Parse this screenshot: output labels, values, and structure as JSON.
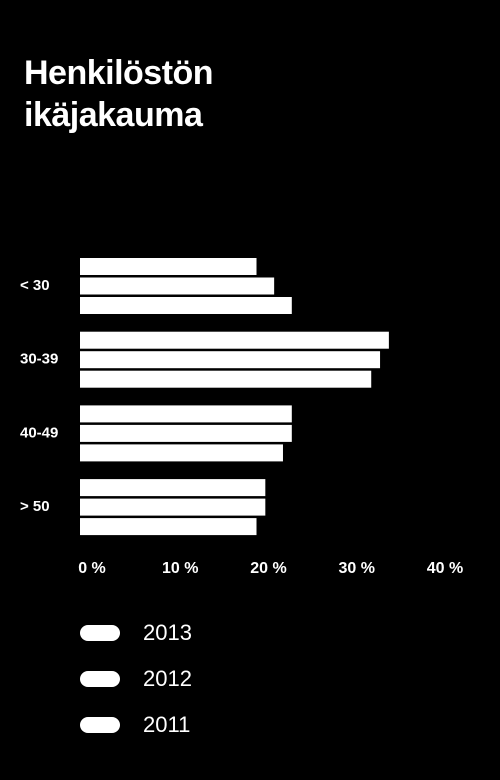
{
  "chart_data": {
    "type": "bar",
    "orientation": "horizontal",
    "title": "Henkilöstön ikäjakauma",
    "categories": [
      "< 30",
      "30-39",
      "40-49",
      "> 50"
    ],
    "series": [
      {
        "name": "2013",
        "color": "#ffffff",
        "values": [
          20,
          35,
          24,
          21
        ]
      },
      {
        "name": "2012",
        "color": "#ffffff",
        "values": [
          22,
          34,
          24,
          21
        ]
      },
      {
        "name": "2011",
        "color": "#ffffff",
        "values": [
          24,
          33,
          23,
          20
        ]
      }
    ],
    "xlim": [
      0,
      40
    ],
    "xticks": [
      {
        "value": 0,
        "label": "0 %"
      },
      {
        "value": 10,
        "label": "10 %"
      },
      {
        "value": 20,
        "label": "20 %"
      },
      {
        "value": 30,
        "label": "30 %"
      },
      {
        "value": 40,
        "label": "40 %"
      }
    ],
    "grid": false
  }
}
